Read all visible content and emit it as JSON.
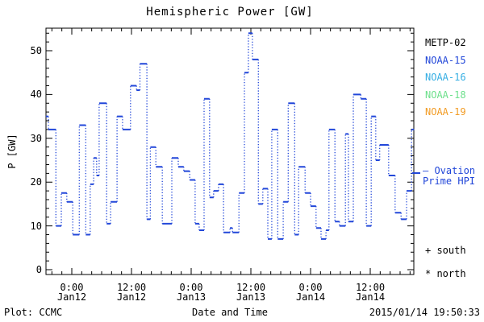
{
  "title": "Hemispheric Power [GW]",
  "axes": {
    "ylabel": "P [GW]",
    "xlabel": "Date and Time",
    "y_major_ticks": [
      0,
      10,
      20,
      30,
      40,
      50
    ],
    "y_minor_step": 2,
    "ylim": [
      -1,
      55.2
    ],
    "x_major_ticks": [
      {
        "time": "0:00",
        "date": "Jan12",
        "h": 0
      },
      {
        "time": "12:00",
        "date": "Jan12",
        "h": 12
      },
      {
        "time": "0:00",
        "date": "Jan13",
        "h": 24
      },
      {
        "time": "12:00",
        "date": "Jan13",
        "h": 36
      },
      {
        "time": "0:00",
        "date": "Jan14",
        "h": 48
      },
      {
        "time": "12:00",
        "date": "Jan14",
        "h": 60
      }
    ],
    "x_minor_step_hours": 2,
    "xlim_hours": [
      -5.2,
      68.8
    ]
  },
  "legend": {
    "satellites": [
      {
        "label": "METP-02",
        "color": "#000000"
      },
      {
        "label": "NOAA-15",
        "color": "#2247d9"
      },
      {
        "label": "NOAA-16",
        "color": "#35aee3"
      },
      {
        "label": "NOAA-18",
        "color": "#6ee08c"
      },
      {
        "label": "NOAA-19",
        "color": "#f29c25"
      }
    ]
  },
  "annotations": {
    "ovation_line1": "– Ovation",
    "ovation_line2": "Prime HPI",
    "ovation_color": "#2247d9",
    "south_marker": "+ south",
    "north_marker": "* north"
  },
  "footer": {
    "left": "Plot: CCMC",
    "right": "2015/01/14 19:50:33"
  },
  "chart_data": {
    "type": "line",
    "subtype": "step-post",
    "series_name": "Ovation Prime HPI",
    "line_color": "#2247d9",
    "title": "Hemispheric Power [GW]",
    "xlabel": "Date and Time",
    "ylabel": "P [GW]",
    "x_units": "hours since 2015-01-12 00:00",
    "y_units": "GW",
    "xlim": [
      -5.2,
      68.8
    ],
    "ylim": [
      -1,
      55.2
    ],
    "t_end": 68.8,
    "steps": [
      [
        -5.2,
        35
      ],
      [
        -4.7,
        32
      ],
      [
        -3.2,
        10
      ],
      [
        -2.1,
        17.5
      ],
      [
        -1.0,
        15.5
      ],
      [
        0.2,
        8
      ],
      [
        1.5,
        33
      ],
      [
        2.8,
        8
      ],
      [
        3.7,
        19.5
      ],
      [
        4.4,
        25.5
      ],
      [
        5.0,
        21.5
      ],
      [
        5.5,
        38
      ],
      [
        7.0,
        10.5
      ],
      [
        7.8,
        15.5
      ],
      [
        9.1,
        35
      ],
      [
        10.2,
        32
      ],
      [
        11.8,
        42
      ],
      [
        13.0,
        41
      ],
      [
        13.7,
        47
      ],
      [
        15.1,
        11.5
      ],
      [
        15.8,
        28
      ],
      [
        16.9,
        23.5
      ],
      [
        18.2,
        10.5
      ],
      [
        20.1,
        25.5
      ],
      [
        21.4,
        23.5
      ],
      [
        22.5,
        22.5
      ],
      [
        23.7,
        20.5
      ],
      [
        24.8,
        10.5
      ],
      [
        25.6,
        9
      ],
      [
        26.6,
        39
      ],
      [
        27.7,
        16.5
      ],
      [
        28.5,
        18
      ],
      [
        29.5,
        19.5
      ],
      [
        30.5,
        8.5
      ],
      [
        31.8,
        9.5
      ],
      [
        32.3,
        8.5
      ],
      [
        33.6,
        17.5
      ],
      [
        34.7,
        45
      ],
      [
        35.5,
        54
      ],
      [
        36.3,
        48
      ],
      [
        37.5,
        15
      ],
      [
        38.4,
        18.5
      ],
      [
        39.4,
        7
      ],
      [
        40.2,
        32
      ],
      [
        41.4,
        7
      ],
      [
        42.5,
        15.5
      ],
      [
        43.5,
        38
      ],
      [
        44.8,
        8
      ],
      [
        45.6,
        23.5
      ],
      [
        46.9,
        17.5
      ],
      [
        48.0,
        14.5
      ],
      [
        49.1,
        9.5
      ],
      [
        50.1,
        7
      ],
      [
        51.1,
        9
      ],
      [
        51.7,
        32
      ],
      [
        52.9,
        11
      ],
      [
        53.8,
        10
      ],
      [
        55.0,
        31
      ],
      [
        55.6,
        11
      ],
      [
        56.6,
        40
      ],
      [
        58.1,
        39
      ],
      [
        59.2,
        10
      ],
      [
        60.2,
        35
      ],
      [
        61.1,
        25
      ],
      [
        61.9,
        28.5
      ],
      [
        63.7,
        21.5
      ],
      [
        65.0,
        13
      ],
      [
        66.2,
        11.5
      ],
      [
        67.3,
        18
      ],
      [
        68.3,
        32
      ]
    ]
  }
}
